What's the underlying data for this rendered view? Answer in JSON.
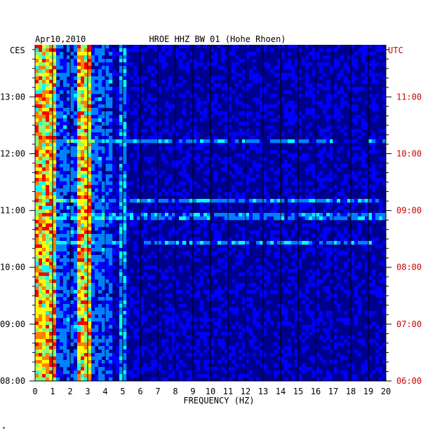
{
  "chart_data": {
    "type": "heatmap",
    "date_label": "Apr10,2010",
    "title": "HROE HHZ BW 01 (Hohe Rhoen)",
    "left_axis_label": "CES",
    "right_axis_label": "UTC",
    "xlabel": "FREQUENCY (HZ)",
    "xlim": [
      0,
      20
    ],
    "x_ticks": [
      "0",
      "1",
      "2",
      "3",
      "4",
      "5",
      "6",
      "7",
      "8",
      "9",
      "10",
      "11",
      "12",
      "13",
      "14",
      "15",
      "16",
      "17",
      "18",
      "19",
      "20"
    ],
    "left_time_ticks": [
      "08:00",
      "09:00",
      "10:00",
      "11:00",
      "12:00",
      "13:00"
    ],
    "right_time_ticks": [
      "06:00",
      "07:00",
      "08:00",
      "09:00",
      "10:00",
      "11:00"
    ],
    "time_range_ces": [
      "08:00",
      "13:55"
    ],
    "dominant_frequency_bands_hz": [
      {
        "range": [
          0.2,
          1.0
        ],
        "level": "high"
      },
      {
        "range": [
          2.5,
          3.0
        ],
        "level": "high"
      },
      {
        "range": [
          4.9,
          5.0
        ],
        "level": "medium"
      }
    ],
    "colorscale": [
      "#00008f",
      "#0000ff",
      "#0080ff",
      "#00ffff",
      "#80ff80",
      "#ffff00",
      "#ff8000",
      "#ff0000"
    ],
    "grid": true
  },
  "footer_mark": "*"
}
